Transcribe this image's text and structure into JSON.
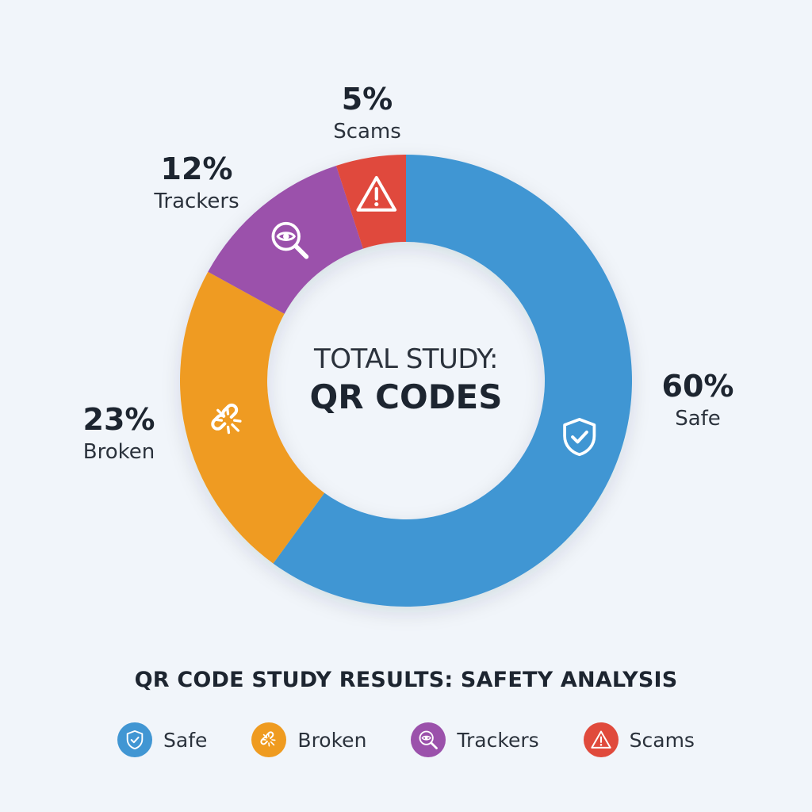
{
  "chart_data": {
    "type": "pie",
    "variant": "donut",
    "center_text": [
      "TOTAL STUDY:",
      "QR CODES"
    ],
    "title": "QR CODE STUDY RESULTS: SAFETY ANALYSIS",
    "legend_position": "bottom",
    "slices": [
      {
        "label": "Safe",
        "value": 60,
        "value_label": "60%",
        "color": "#4196d3",
        "icon": "shield-check-icon"
      },
      {
        "label": "Broken",
        "value": 23,
        "value_label": "23%",
        "color": "#ef9b20",
        "icon": "broken-link-icon"
      },
      {
        "label": "Trackers",
        "value": 12,
        "value_label": "12%",
        "color": "#9b51ab",
        "icon": "eye-magnifier-icon"
      },
      {
        "label": "Scams",
        "value": 5,
        "value_label": "5%",
        "color": "#e04a3c",
        "icon": "warning-icon"
      }
    ]
  },
  "legend": [
    {
      "label": "Safe",
      "color": "#4196d3",
      "icon": "shield-check-icon"
    },
    {
      "label": "Broken",
      "color": "#ef9b20",
      "icon": "broken-link-icon"
    },
    {
      "label": "Trackers",
      "color": "#9b51ab",
      "icon": "eye-magnifier-icon"
    },
    {
      "label": "Scams",
      "color": "#e04a3c",
      "icon": "warning-icon"
    }
  ]
}
